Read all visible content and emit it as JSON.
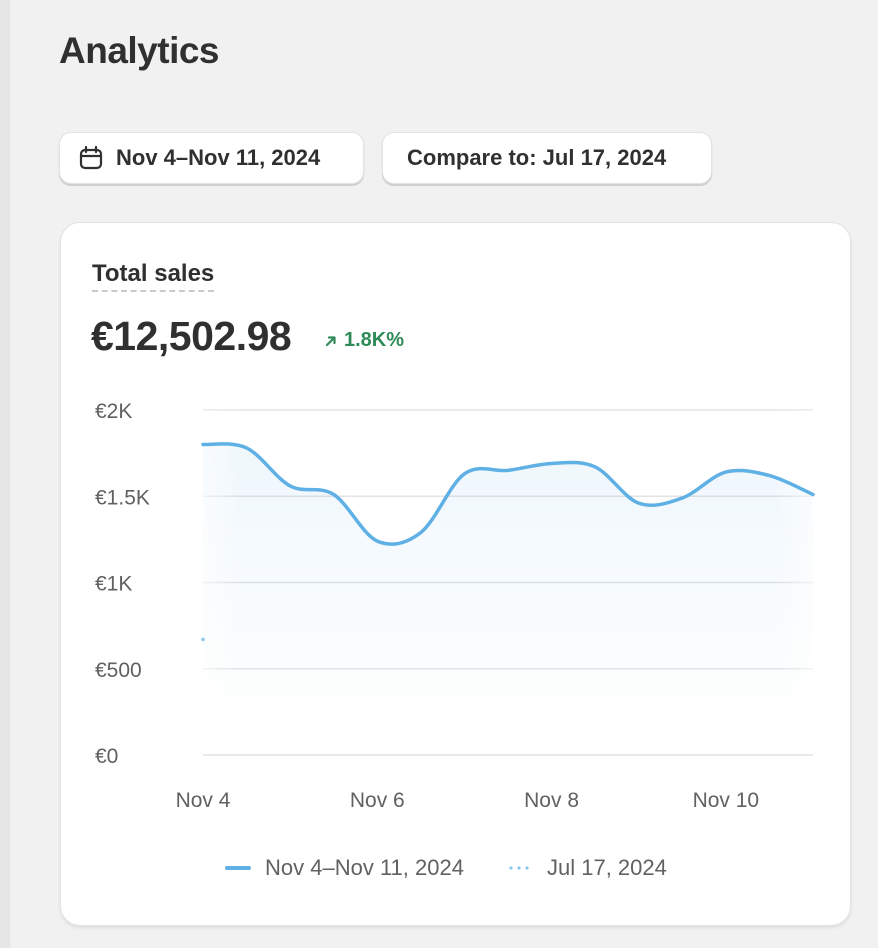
{
  "page": {
    "title": "Analytics"
  },
  "filters": {
    "date_range": {
      "label": "Nov 4–Nov 11, 2024",
      "icon": "calendar-icon"
    },
    "compare": {
      "label": "Compare to: Jul 17, 2024"
    }
  },
  "card": {
    "metric_label": "Total sales",
    "metric_value": "€12,502.98",
    "delta": {
      "text": "1.8K%",
      "icon": "arrow-up-right-icon",
      "color": "#2e8b57"
    }
  },
  "colors": {
    "accent": "#5fb0e5",
    "compare": "#8cc8ee",
    "grid": "#e3e3e3"
  },
  "legend": [
    {
      "label": "Nov 4–Nov 11, 2024",
      "style": "solid"
    },
    {
      "label": "Jul 17, 2024",
      "style": "dotted"
    }
  ],
  "chart_data": {
    "type": "area",
    "title": "Total sales",
    "x_tick_labels": [
      "Nov 4",
      "Nov 6",
      "Nov 8",
      "Nov 10"
    ],
    "y_tick_labels": [
      "€0",
      "€500",
      "€1K",
      "€1.5K",
      "€2K"
    ],
    "ylim": [
      0,
      2000
    ],
    "grid": true,
    "legend_placement": "bottom",
    "series": [
      {
        "name": "Nov 4–Nov 11, 2024",
        "style": "solid",
        "points": [
          [
            "Nov 4",
            1800
          ],
          [
            "Nov 4 12:00",
            1780
          ],
          [
            "Nov 5 00:00",
            1560
          ],
          [
            "Nov 5 12:00",
            1510
          ],
          [
            "Nov 6 00:00",
            1240
          ],
          [
            "Nov 6 12:00",
            1290
          ],
          [
            "Nov 7 00:00",
            1630
          ],
          [
            "Nov 7 12:00",
            1650
          ],
          [
            "Nov 8 00:00",
            1690
          ],
          [
            "Nov 8 12:00",
            1670
          ],
          [
            "Nov 9 00:00",
            1460
          ],
          [
            "Nov 9 12:00",
            1490
          ],
          [
            "Nov 10 00:00",
            1640
          ],
          [
            "Nov 10 12:00",
            1620
          ],
          [
            "Nov 11",
            1510
          ]
        ]
      },
      {
        "name": "Jul 17, 2024",
        "style": "dotted",
        "points": [
          [
            "Nov 4",
            670
          ]
        ]
      }
    ]
  }
}
